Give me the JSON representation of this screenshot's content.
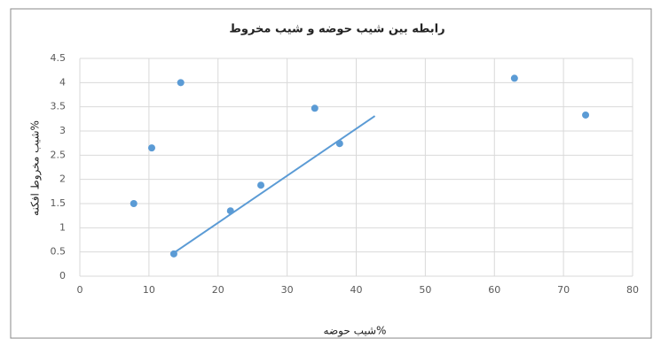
{
  "chart_data": {
    "type": "scatter",
    "title": "رابطه بین شیب حوضه و شیب مخروط",
    "x_label": "شیب حوضه%",
    "y_label": "شیب مخروط افکنه%",
    "x": [
      7.8,
      10.4,
      14.6,
      13.6,
      21.8,
      26.2,
      34.0,
      37.6,
      62.9,
      73.2
    ],
    "y": [
      1.5,
      2.65,
      4.0,
      0.46,
      1.35,
      1.88,
      3.47,
      2.74,
      4.09,
      3.33
    ],
    "color": "#5b9bd5",
    "trendline": {
      "x": [
        13.7,
        42.7
      ],
      "y": [
        0.49,
        3.31
      ],
      "color": "#5b9bd5"
    },
    "xlim": [
      0,
      80
    ],
    "xticks": [
      0,
      10,
      20,
      30,
      40,
      50,
      60,
      70,
      80
    ],
    "ylim": [
      0,
      4.5
    ],
    "yticks": [
      0,
      0.5,
      1,
      1.5,
      2,
      2.5,
      3,
      3.5,
      4,
      4.5
    ],
    "grid": true
  }
}
